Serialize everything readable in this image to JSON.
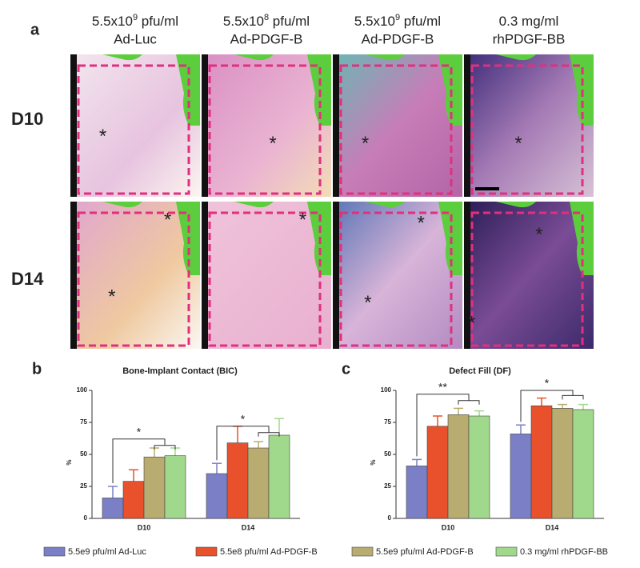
{
  "panel_a": {
    "label": "a",
    "columns": [
      {
        "line1": [
          "5.5x10",
          "9",
          " pfu/ml"
        ],
        "line2": "Ad-Luc"
      },
      {
        "line1": [
          "5.5x10",
          "8",
          " pfu/ml"
        ],
        "line2": "Ad-PDGF-B"
      },
      {
        "line1": [
          "5.5x10",
          "9",
          " pfu/ml"
        ],
        "line2": "Ad-PDGF-B"
      },
      {
        "line1": [
          "0.3 mg/ml"
        ],
        "line2": "rhPDGF-BB"
      }
    ],
    "rows": [
      "D10",
      "D14"
    ],
    "markers": [
      [
        [
          "*"
        ],
        [
          "*"
        ],
        [
          "*"
        ],
        [
          "*"
        ]
      ],
      [
        [
          "*",
          "*"
        ],
        [
          "*"
        ],
        [
          "*",
          "*"
        ],
        [
          "*",
          "*"
        ]
      ]
    ]
  },
  "chart_data": [
    {
      "type": "bar",
      "panel_label": "b",
      "title": "Bone-Implant Contact (BIC)",
      "ylabel": "%",
      "categories": [
        "D10",
        "D14"
      ],
      "series": [
        {
          "name": "5.5e9 pfu/ml Ad-Luc",
          "color": "#7b80c6",
          "values": [
            16,
            35
          ],
          "errors": [
            9,
            8
          ]
        },
        {
          "name": "5.5e8 pfu/ml Ad-PDGF-B",
          "color": "#e8512b",
          "values": [
            29,
            59
          ],
          "errors": [
            9,
            13
          ]
        },
        {
          "name": "5.5e9 pfu/ml Ad-PDGF-B",
          "color": "#b9ac70",
          "values": [
            48,
            55
          ],
          "errors": [
            7,
            5
          ]
        },
        {
          "name": "0.3 mg/ml rhPDGF-BB",
          "color": "#a0d98c",
          "values": [
            49,
            65
          ],
          "errors": [
            6,
            13
          ]
        }
      ],
      "ylim": [
        0,
        100
      ],
      "yticks": [
        0,
        25,
        50,
        75,
        100
      ],
      "annotations": [
        "*",
        "*"
      ],
      "legend": "bottom"
    },
    {
      "type": "bar",
      "panel_label": "c",
      "title": "Defect Fill (DF)",
      "ylabel": "%",
      "categories": [
        "D10",
        "D14"
      ],
      "series": [
        {
          "color": "#7b80c6",
          "values": [
            41,
            66
          ],
          "errors": [
            5,
            7
          ]
        },
        {
          "color": "#e8512b",
          "values": [
            72,
            88
          ],
          "errors": [
            8,
            6
          ]
        },
        {
          "color": "#b9ac70",
          "values": [
            81,
            86
          ],
          "errors": [
            5,
            3
          ]
        },
        {
          "color": "#a0d98c",
          "values": [
            80,
            85
          ],
          "errors": [
            4,
            4
          ]
        }
      ],
      "ylim": [
        0,
        100
      ],
      "yticks": [
        0,
        25,
        50,
        75,
        100
      ],
      "annotations": [
        "**",
        "*"
      ]
    }
  ]
}
